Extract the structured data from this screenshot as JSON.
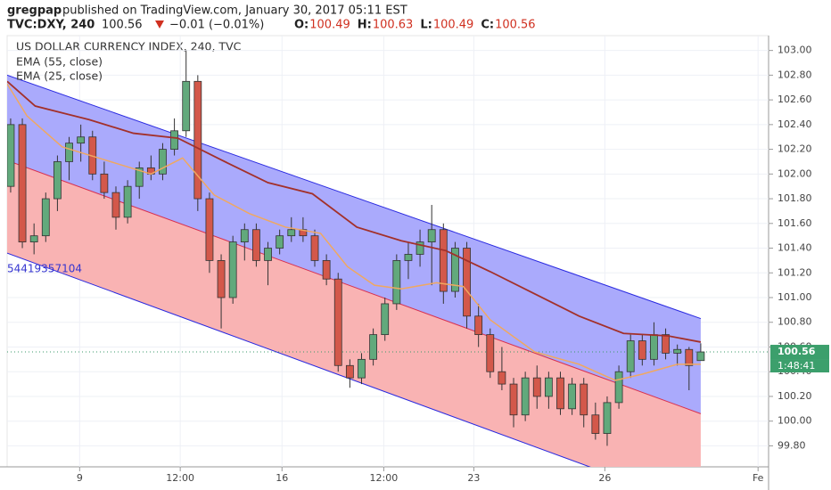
{
  "header": {
    "author": "gregpap",
    "published": "published on TradingView.com, January 30, 2017 05:11 EST",
    "symbol": "TVC:DXY, 240",
    "last": "100.56",
    "change": "−0.01 (−0.01%)",
    "ohlc": [
      {
        "label": "O:",
        "value": "100.49"
      },
      {
        "label": "H:",
        "value": "100.63"
      },
      {
        "label": "L:",
        "value": "100.49"
      },
      {
        "label": "C:",
        "value": "100.56"
      }
    ]
  },
  "chart_data": {
    "type": "candlestick",
    "title": "US DOLLAR CURRENCY INDEX, 240, TVC",
    "up_color": "#62a97c",
    "down_color": "#d3584a",
    "x": [
      0,
      1,
      2,
      3,
      4,
      5,
      6,
      7,
      8,
      9,
      10,
      11,
      12,
      13,
      14,
      15,
      16,
      17,
      18,
      19,
      20,
      21,
      22,
      23,
      24,
      25,
      26,
      27,
      28,
      29,
      30,
      31,
      32,
      33,
      34,
      35,
      36,
      37,
      38,
      39,
      40,
      41,
      42,
      43,
      44,
      45,
      46,
      47,
      48,
      49,
      50,
      51,
      52,
      53,
      54,
      55,
      56,
      57,
      58,
      59
    ],
    "open": [
      101.9,
      102.4,
      101.45,
      101.5,
      101.8,
      102.1,
      102.25,
      102.3,
      102.0,
      101.85,
      101.65,
      101.9,
      102.05,
      102.0,
      102.2,
      102.35,
      102.75,
      101.8,
      101.3,
      101.0,
      101.45,
      101.55,
      101.3,
      101.4,
      101.5,
      101.55,
      101.5,
      101.3,
      101.15,
      100.45,
      100.35,
      100.5,
      100.7,
      100.95,
      101.3,
      101.35,
      101.45,
      101.55,
      101.05,
      101.4,
      100.85,
      100.7,
      100.4,
      100.3,
      100.05,
      100.35,
      100.2,
      100.35,
      100.1,
      100.3,
      100.05,
      99.9,
      100.15,
      100.4,
      100.65,
      100.5,
      100.7,
      100.55,
      100.58,
      100.49
    ],
    "high": [
      102.45,
      102.45,
      101.6,
      101.85,
      102.15,
      102.3,
      102.4,
      102.35,
      102.1,
      101.9,
      101.95,
      102.1,
      102.15,
      102.25,
      102.45,
      103.0,
      102.8,
      101.85,
      101.35,
      101.5,
      101.6,
      101.6,
      101.45,
      101.55,
      101.65,
      101.65,
      101.55,
      101.35,
      101.2,
      100.5,
      100.55,
      100.75,
      101.0,
      101.35,
      101.45,
      101.55,
      101.75,
      101.6,
      101.45,
      101.45,
      100.95,
      100.75,
      100.6,
      100.35,
      100.4,
      100.45,
      100.4,
      100.4,
      100.35,
      100.35,
      100.15,
      100.2,
      100.45,
      100.7,
      100.7,
      100.8,
      100.75,
      100.62,
      100.6,
      100.63
    ],
    "low": [
      101.85,
      101.4,
      101.35,
      101.45,
      101.7,
      101.95,
      102.1,
      101.95,
      101.8,
      101.55,
      101.6,
      101.8,
      101.95,
      101.95,
      102.15,
      102.3,
      101.7,
      101.2,
      100.75,
      100.95,
      101.3,
      101.25,
      101.1,
      101.35,
      101.45,
      101.45,
      101.25,
      101.1,
      100.4,
      100.27,
      100.3,
      100.45,
      100.65,
      100.9,
      101.15,
      101.25,
      101.1,
      100.95,
      101.0,
      100.75,
      100.6,
      100.35,
      100.25,
      99.95,
      100.0,
      100.1,
      100.1,
      100.05,
      100.05,
      99.95,
      99.85,
      99.8,
      100.1,
      100.35,
      100.45,
      100.45,
      100.5,
      100.45,
      100.25,
      100.49
    ],
    "close": [
      102.4,
      101.45,
      101.5,
      101.8,
      102.1,
      102.25,
      102.3,
      102.0,
      101.85,
      101.65,
      101.9,
      102.05,
      102.0,
      102.2,
      102.35,
      102.75,
      101.8,
      101.3,
      101.0,
      101.45,
      101.55,
      101.3,
      101.4,
      101.5,
      101.55,
      101.5,
      101.3,
      101.15,
      100.45,
      100.35,
      100.5,
      100.7,
      100.95,
      101.3,
      101.35,
      101.45,
      101.55,
      101.05,
      101.4,
      100.85,
      100.7,
      100.4,
      100.3,
      100.05,
      100.35,
      100.2,
      100.35,
      100.1,
      100.3,
      100.05,
      99.9,
      100.15,
      100.4,
      100.65,
      100.5,
      100.7,
      100.55,
      100.58,
      100.45,
      100.56
    ],
    "series": [
      {
        "name": "EMA (55, close)",
        "color": "#a3302a",
        "x": [
          -0.3,
          2.1,
          6.7,
          10.5,
          14.3,
          18.1,
          22.0,
          25.8,
          29.6,
          33.4,
          37.2,
          41.0,
          44.8,
          48.6,
          52.4,
          56.2,
          59.0
        ],
        "values": [
          102.75,
          102.55,
          102.44,
          102.33,
          102.29,
          102.11,
          101.93,
          101.84,
          101.57,
          101.46,
          101.38,
          101.21,
          101.03,
          100.85,
          100.71,
          100.69,
          100.64
        ]
      },
      {
        "name": "EMA (25, close)",
        "color": "#f0a860",
        "x": [
          -0.3,
          1.4,
          4.4,
          8.2,
          12.0,
          14.7,
          17.4,
          20.4,
          23.5,
          26.5,
          28.8,
          31.1,
          33.4,
          36.4,
          38.7,
          41.0,
          44.8,
          48.6,
          51.7,
          54.0,
          57.0,
          59.0
        ],
        "values": [
          102.73,
          102.47,
          102.22,
          102.11,
          102.0,
          102.13,
          101.83,
          101.68,
          101.57,
          101.52,
          101.25,
          101.1,
          101.07,
          101.12,
          101.09,
          100.82,
          100.56,
          100.46,
          100.33,
          100.38,
          100.46,
          100.46
        ]
      }
    ],
    "channel": {
      "x": [
        -0.3,
        59
      ],
      "upper": [
        102.8,
        100.83
      ],
      "middle": [
        102.11,
        100.06
      ],
      "lower": [
        101.36,
        99.3
      ],
      "label": "54419357104"
    },
    "last_price": {
      "value": 100.56,
      "label": "100.56"
    },
    "countdown": "1:48:41",
    "xlim": [
      -0.3,
      64.8
    ],
    "ylim": [
      99.63,
      103.12
    ],
    "xticks": [
      {
        "value": 5.9,
        "label": "9"
      },
      {
        "value": 14.5,
        "label": "12:00"
      },
      {
        "value": 23.2,
        "label": "16"
      },
      {
        "value": 31.9,
        "label": "12:00"
      },
      {
        "value": 39.6,
        "label": "23"
      },
      {
        "value": 50.8,
        "label": "26"
      },
      {
        "value": 63.9,
        "label": "Fe"
      }
    ],
    "yticks": [
      {
        "value": 99.8,
        "label": "99.80"
      },
      {
        "value": 100.0,
        "label": "100.00"
      },
      {
        "value": 100.2,
        "label": "100.20"
      },
      {
        "value": 100.4,
        "label": "100.40"
      },
      {
        "value": 100.6,
        "label": "100.60"
      },
      {
        "value": 100.8,
        "label": "100.80"
      },
      {
        "value": 101.0,
        "label": "101.00"
      },
      {
        "value": 101.2,
        "label": "101.20"
      },
      {
        "value": 101.4,
        "label": "101.40"
      },
      {
        "value": 101.6,
        "label": "101.60"
      },
      {
        "value": 101.8,
        "label": "101.80"
      },
      {
        "value": 102.0,
        "label": "102.00"
      },
      {
        "value": 102.2,
        "label": "102.20"
      },
      {
        "value": 102.4,
        "label": "102.40"
      },
      {
        "value": 102.6,
        "label": "102.60"
      },
      {
        "value": 102.8,
        "label": "102.80"
      },
      {
        "value": 103.0,
        "label": "103.00"
      }
    ],
    "grid": true
  }
}
